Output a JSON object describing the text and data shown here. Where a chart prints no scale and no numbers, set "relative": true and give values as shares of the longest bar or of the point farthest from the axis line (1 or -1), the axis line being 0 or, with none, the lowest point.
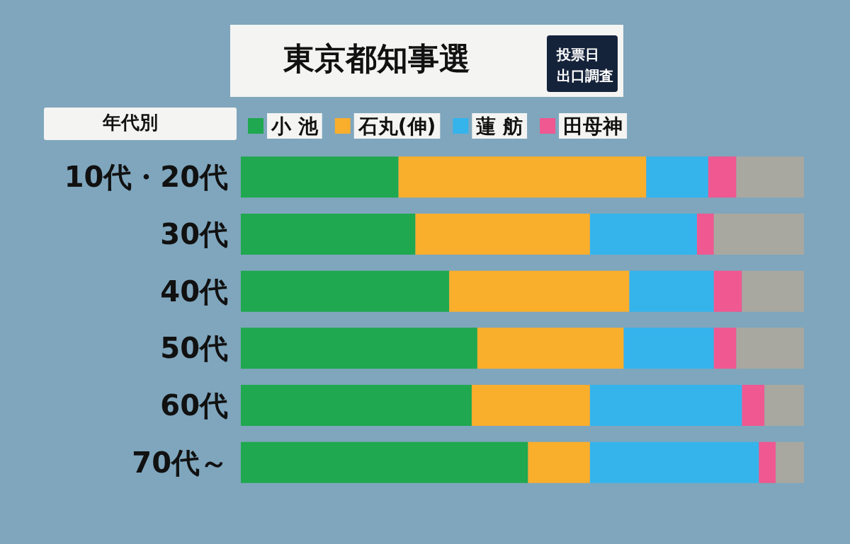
{
  "chart_data": {
    "type": "bar",
    "title": "東京都知事選",
    "annotations": [
      "投票日出口調査"
    ],
    "legend_title": "年代別",
    "orientation": "horizontal",
    "stacked": true,
    "relative": true,
    "legend": "top",
    "categories": [
      "10代・20代",
      "30代",
      "40代",
      "50代",
      "60代",
      "70代～"
    ],
    "series": [
      {
        "name": "小 池",
        "color": "#1fa84f",
        "values": [
          0.28,
          0.31,
          0.37,
          0.42,
          0.41,
          0.51
        ]
      },
      {
        "name": "石丸(伸)",
        "color": "#f9ae2c",
        "values": [
          0.44,
          0.31,
          0.32,
          0.26,
          0.21,
          0.11
        ]
      },
      {
        "name": "蓮 舫",
        "color": "#35b4ec",
        "values": [
          0.11,
          0.19,
          0.15,
          0.16,
          0.27,
          0.3
        ]
      },
      {
        "name": "田母神",
        "color": "#ef5890",
        "values": [
          0.05,
          0.03,
          0.05,
          0.04,
          0.04,
          0.03
        ]
      },
      {
        "color": "#a8a8a0",
        "values": [
          0.12,
          0.16,
          0.11,
          0.12,
          0.07,
          0.05
        ]
      }
    ]
  }
}
